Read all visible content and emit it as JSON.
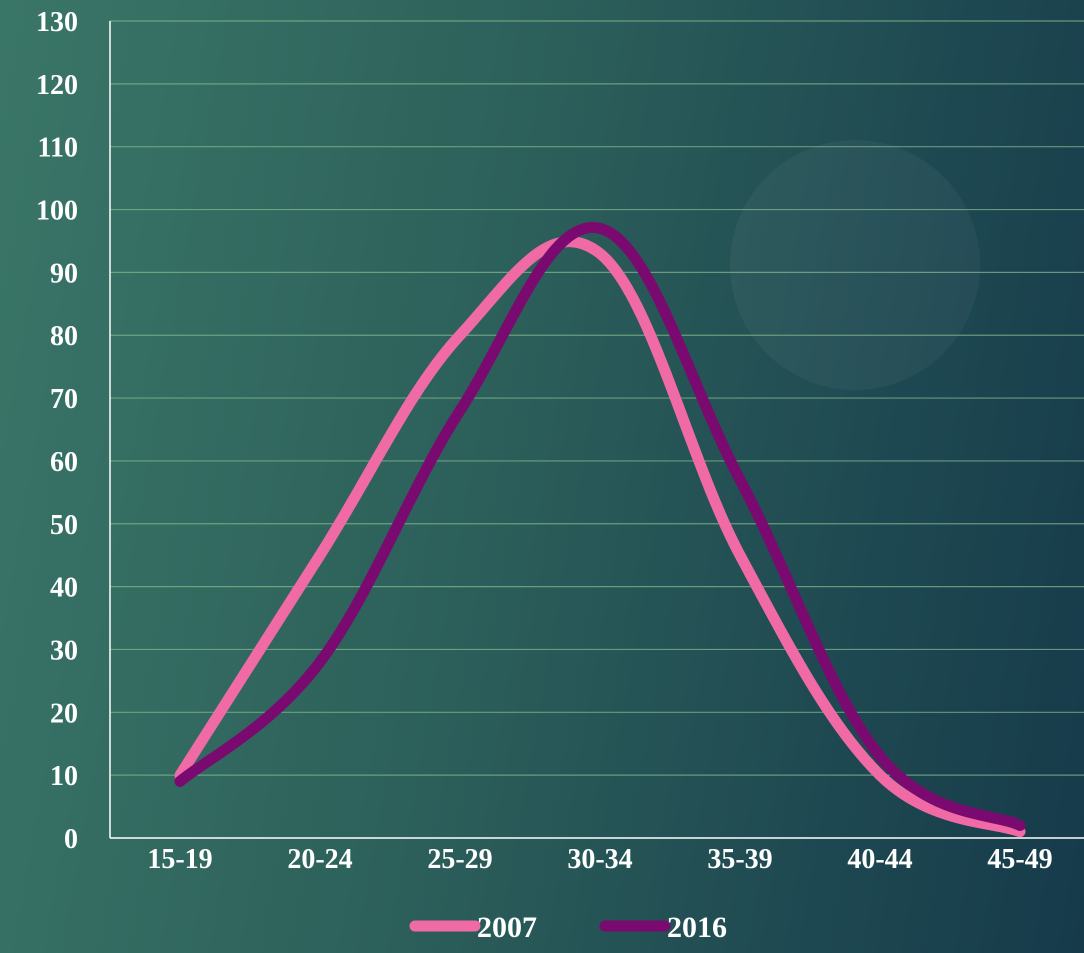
{
  "chart_data": {
    "type": "line",
    "smooth": true,
    "categories": [
      "15-19",
      "20-24",
      "25-29",
      "30-34",
      "35-39",
      "40-44",
      "45-49"
    ],
    "series": [
      {
        "name": "2007",
        "color": "#f06ba6",
        "values": [
          10,
          45,
          80,
          93,
          45,
          10,
          1
        ]
      },
      {
        "name": "2016",
        "color": "#7a0a70",
        "values": [
          9,
          28,
          68,
          97,
          57,
          13,
          2
        ]
      }
    ],
    "yticks": [
      0,
      10,
      20,
      30,
      40,
      50,
      60,
      70,
      80,
      90,
      100,
      110,
      120,
      130
    ],
    "ylim": [
      0,
      130
    ],
    "grid": true,
    "legend_position": "bottom-center"
  }
}
